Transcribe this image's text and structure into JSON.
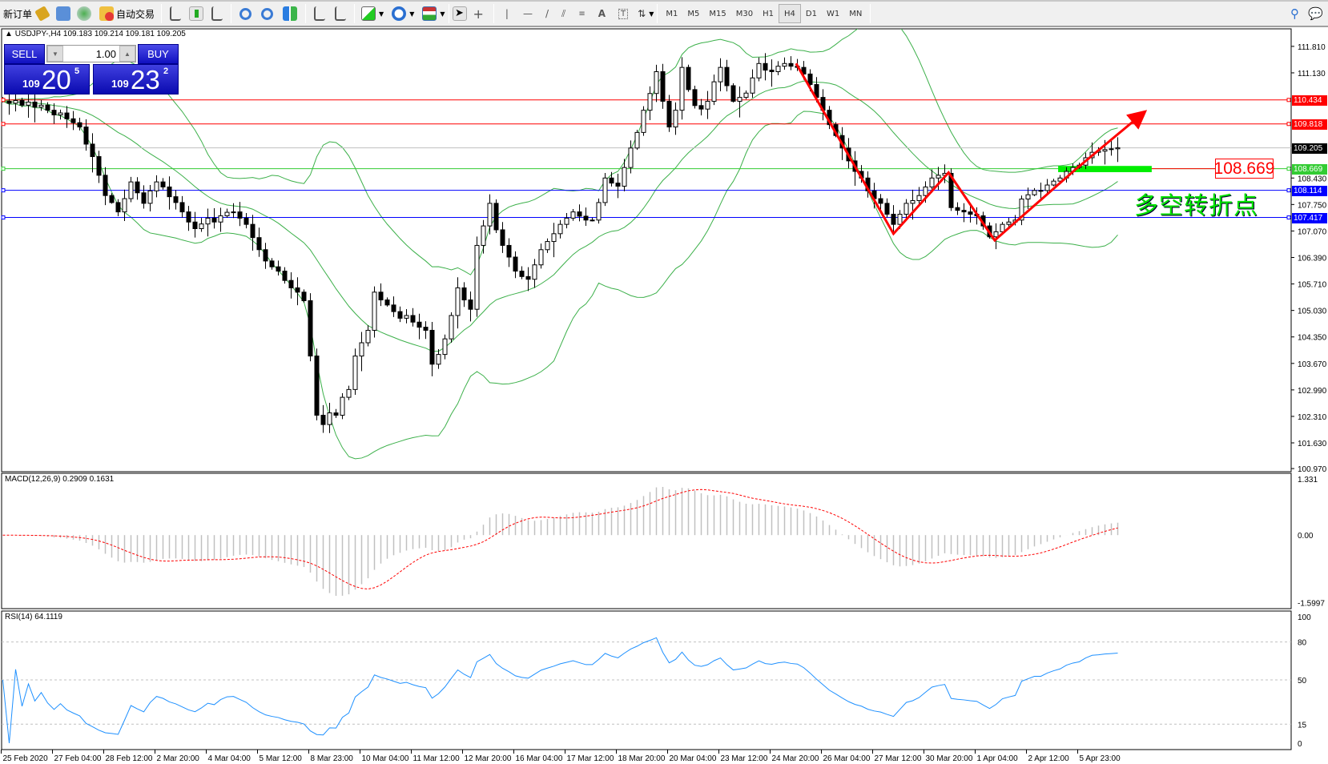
{
  "toolbar": {
    "new_order": "新订单",
    "auto_trading": "自动交易",
    "timeframes": [
      "M1",
      "M5",
      "M15",
      "M30",
      "H1",
      "H4",
      "D1",
      "W1",
      "MN"
    ],
    "active_timeframe": "H4"
  },
  "chart_title": "USDJPY-,H4  109.183 109.214 109.181 109.205",
  "trade_panel": {
    "sell_label": "SELL",
    "buy_label": "BUY",
    "lot": "1.00",
    "sell_price": {
      "big": "109",
      "main": "20",
      "pip": "5"
    },
    "buy_price": {
      "big": "109",
      "main": "23",
      "pip": "2"
    }
  },
  "annotation_price": "108.669",
  "annotation_text": "多空转折点",
  "colors": {
    "bull": "#ffffff",
    "bear": "#000000",
    "bands": "#3cb04a",
    "zigzag": "#ff0000",
    "rsi": "#1e90ff",
    "macd_hist": "#c0c0c0",
    "macd_signal": "#ff0000"
  },
  "chart_data": {
    "type": "candlestick",
    "symbol": "USDJPY-",
    "timeframe": "H4",
    "ylim": [
      100.89,
      112.26
    ],
    "price_ticks": [
      "111.810",
      "111.130",
      "108.430",
      "107.750",
      "107.070",
      "106.390",
      "105.710",
      "105.030",
      "104.350",
      "103.670",
      "102.990",
      "102.310",
      "101.630",
      "100.970"
    ],
    "time_labels": [
      "25 Feb 2020",
      "27 Feb 04:00",
      "28 Feb 12:00",
      "2 Mar 20:00",
      "4 Mar 04:00",
      "5 Mar 12:00",
      "8 Mar 23:00",
      "10 Mar 04:00",
      "11 Mar 12:00",
      "12 Mar 20:00",
      "16 Mar 04:00",
      "17 Mar 12:00",
      "18 Mar 20:00",
      "20 Mar 04:00",
      "23 Mar 12:00",
      "24 Mar 20:00",
      "26 Mar 04:00",
      "27 Mar 12:00",
      "30 Mar 20:00",
      "1 Apr 04:00",
      "2 Apr 12:00",
      "5 Apr 23:00"
    ],
    "closes": [
      110.4,
      110.35,
      110.42,
      110.3,
      110.38,
      110.25,
      110.3,
      110.17,
      110.05,
      110.1,
      109.95,
      109.85,
      109.74,
      109.3,
      108.98,
      108.5,
      107.98,
      107.8,
      107.56,
      107.9,
      108.33,
      108.05,
      107.78,
      108.1,
      108.33,
      108.2,
      107.95,
      107.8,
      107.56,
      107.3,
      107.13,
      107.25,
      107.4,
      107.3,
      107.46,
      107.55,
      107.56,
      107.4,
      107.24,
      106.9,
      106.59,
      106.3,
      106.15,
      106.04,
      105.8,
      105.61,
      105.5,
      105.28,
      103.86,
      102.34,
      102.1,
      102.4,
      102.34,
      102.8,
      103.0,
      103.86,
      104.2,
      104.52,
      105.5,
      105.3,
      105.17,
      105.0,
      104.83,
      104.9,
      104.73,
      104.6,
      104.52,
      103.65,
      103.9,
      104.3,
      104.9,
      105.61,
      105.3,
      105.06,
      106.7,
      107.2,
      107.78,
      107.1,
      106.7,
      106.4,
      106.04,
      105.9,
      105.83,
      106.2,
      106.59,
      106.8,
      107.0,
      107.24,
      107.4,
      107.56,
      107.45,
      107.35,
      107.35,
      107.8,
      108.43,
      108.3,
      108.22,
      108.7,
      109.2,
      109.6,
      110.17,
      110.6,
      111.16,
      110.4,
      109.74,
      110.17,
      111.27,
      110.7,
      110.29,
      110.2,
      110.4,
      110.9,
      111.27,
      110.8,
      110.4,
      110.5,
      110.61,
      111.0,
      111.37,
      111.2,
      111.16,
      111.3,
      111.37,
      111.3,
      111.27,
      111.1,
      110.83,
      110.5,
      110.17,
      109.8,
      109.52,
      109.2,
      108.87,
      108.6,
      108.43,
      108.1,
      107.9,
      107.78,
      107.5,
      107.24,
      107.5,
      107.78,
      107.85,
      107.98,
      108.2,
      108.43,
      108.5,
      108.55,
      107.67,
      107.6,
      107.56,
      107.5,
      107.46,
      107.2,
      106.92,
      107.05,
      107.24,
      107.3,
      107.35,
      107.89,
      108.0,
      108.11,
      108.11,
      108.25,
      108.35,
      108.43,
      108.6,
      108.7,
      108.76,
      108.95,
      109.09,
      109.12,
      109.16,
      109.18,
      109.205
    ],
    "indicators": {
      "bollinger": {
        "period": 20,
        "deviation": 2
      },
      "macd": {
        "label": "MACD(12,26,9) 0.2909 0.1631",
        "fast": 12,
        "slow": 26,
        "signal": 9,
        "ylim": [
          -1.74,
          1.463
        ],
        "axis_labels": [
          "1.331",
          "0.00",
          "-1.5997"
        ]
      },
      "rsi": {
        "label": "RSI(14) 64.1119",
        "period": 14,
        "levels": [
          80,
          50,
          15
        ],
        "axis_labels": [
          "100",
          "80",
          "50",
          "15",
          "0"
        ]
      }
    },
    "hlines": [
      {
        "price": 110.434,
        "label": "110.434",
        "color": "#ff0000"
      },
      {
        "price": 109.818,
        "label": "109.818",
        "color": "#ff0000"
      },
      {
        "price": 109.205,
        "label": "109.205",
        "color": "#000000",
        "line": "#c0c0c0"
      },
      {
        "price": 108.669,
        "label": "108.669",
        "color": "#33cc33"
      },
      {
        "price": 108.114,
        "label": "108.114",
        "color": "#0000ff"
      },
      {
        "price": 107.417,
        "label": "107.417",
        "color": "#0000ff"
      }
    ],
    "zigzag": [
      [
        123.8,
        111.37
      ],
      [
        139,
        107.0
      ],
      [
        147.6,
        108.57
      ],
      [
        154.8,
        106.83
      ],
      [
        167.4,
        108.65
      ],
      [
        178,
        110.1
      ]
    ],
    "support_zone": {
      "bars": [
        164.7,
        179.3
      ],
      "prices": [
        108.58,
        108.74
      ]
    }
  }
}
